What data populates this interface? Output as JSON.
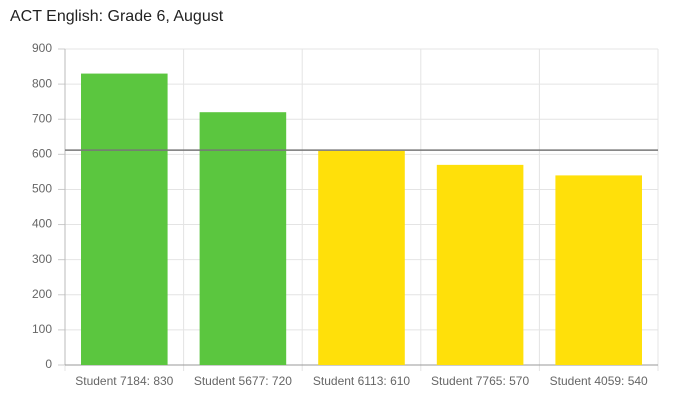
{
  "chart_data": {
    "type": "bar",
    "title": "ACT English: Grade 6, August",
    "categories": [
      "Student 7184: 830",
      "Student 5677: 720",
      "Student 6113: 610",
      "Student 7765: 570",
      "Student 4059: 540"
    ],
    "values": [
      830,
      720,
      610,
      570,
      540
    ],
    "colors": [
      "#5bc63f",
      "#5bc63f",
      "#ffe00a",
      "#ffe00a",
      "#ffe00a"
    ],
    "reference_line": 612,
    "ylim": [
      0,
      900
    ],
    "yticks": [
      0,
      100,
      200,
      300,
      400,
      500,
      600,
      700,
      800,
      900
    ],
    "grid": true
  }
}
